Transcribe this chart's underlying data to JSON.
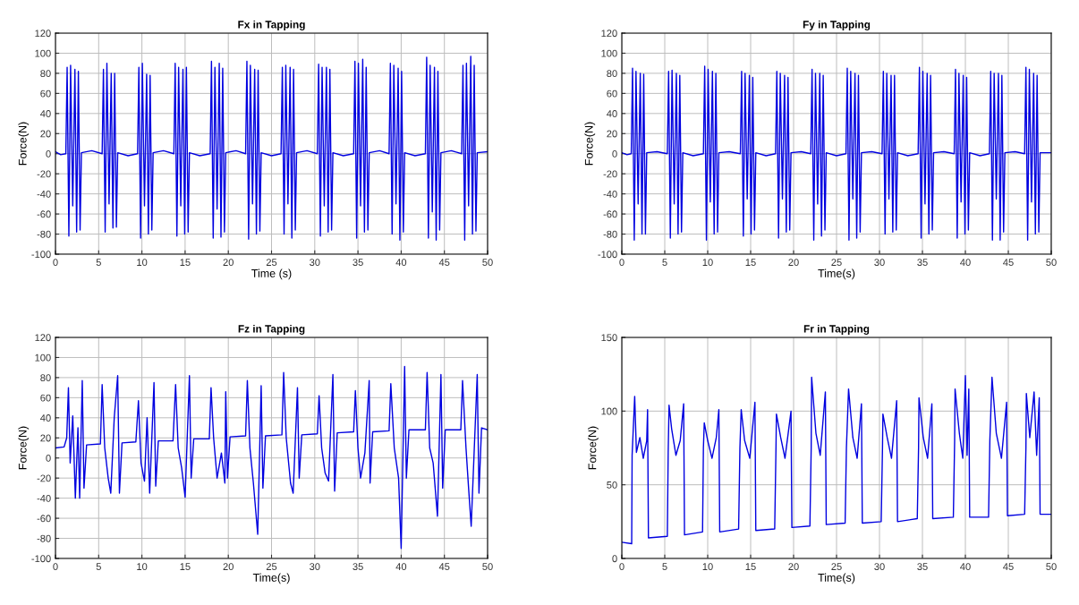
{
  "chart_data": [
    {
      "type": "line",
      "title": "Fx in Tapping",
      "xlabel": "Time (s)",
      "ylabel": "Force(N)",
      "xlim": [
        0,
        50
      ],
      "ylim": [
        -100,
        120
      ],
      "xticks": [
        0,
        5,
        10,
        15,
        20,
        25,
        30,
        35,
        40,
        45,
        50
      ],
      "yticks": [
        -100,
        -80,
        -60,
        -40,
        -20,
        0,
        20,
        40,
        60,
        80,
        100,
        120
      ],
      "grid": true,
      "series": [
        {
          "color": "#0000e0",
          "x": [
            0,
            0.6,
            1.2,
            1.35,
            1.55,
            1.75,
            2.0,
            2.25,
            2.45,
            2.65,
            2.85,
            3.0,
            4.2,
            5.4,
            5.55,
            5.75,
            5.95,
            6.2,
            6.45,
            6.65,
            6.85,
            7.05,
            7.2,
            8.4,
            9.5,
            9.65,
            9.85,
            10.05,
            10.3,
            10.55,
            10.75,
            10.95,
            11.15,
            11.3,
            12.5,
            13.7,
            13.85,
            14.05,
            14.25,
            14.5,
            14.75,
            14.95,
            15.15,
            15.35,
            15.5,
            16.7,
            17.9,
            18.05,
            18.25,
            18.45,
            18.7,
            18.95,
            19.15,
            19.35,
            19.55,
            19.7,
            20.9,
            22.0,
            22.15,
            22.35,
            22.55,
            22.8,
            23.05,
            23.25,
            23.45,
            23.65,
            23.8,
            25.0,
            26.1,
            26.25,
            26.45,
            26.65,
            26.9,
            27.15,
            27.35,
            27.55,
            27.75,
            27.9,
            29.1,
            30.3,
            30.45,
            30.65,
            30.85,
            31.1,
            31.35,
            31.55,
            31.75,
            31.95,
            32.1,
            33.3,
            34.5,
            34.65,
            34.85,
            35.05,
            35.3,
            35.55,
            35.75,
            35.95,
            36.15,
            36.3,
            37.5,
            38.6,
            38.75,
            38.95,
            39.15,
            39.4,
            39.65,
            39.85,
            40.05,
            40.25,
            40.4,
            41.6,
            42.8,
            42.95,
            43.15,
            43.35,
            43.6,
            43.85,
            44.05,
            44.25,
            44.45,
            44.6,
            45.8,
            47.0,
            47.15,
            47.35,
            47.55,
            47.8,
            48.05,
            48.25,
            48.45,
            48.65,
            48.8,
            50.0
          ],
          "values": [
            2,
            -1,
            0,
            86,
            -82,
            88,
            -52,
            84,
            -78,
            82,
            -76,
            1,
            3,
            0,
            84,
            -78,
            90,
            -50,
            80,
            -74,
            80,
            -73,
            1,
            -2,
            0,
            86,
            -84,
            90,
            -52,
            79,
            -80,
            78,
            -76,
            1,
            3,
            0,
            90,
            -82,
            86,
            -52,
            84,
            -80,
            86,
            -78,
            1,
            -2,
            0,
            92,
            -84,
            86,
            -55,
            90,
            -83,
            85,
            -78,
            1,
            3,
            0,
            92,
            -85,
            88,
            -50,
            84,
            -80,
            83,
            -77,
            1,
            -2,
            0,
            86,
            -80,
            88,
            -50,
            86,
            -84,
            84,
            -76,
            1,
            3,
            0,
            89,
            -82,
            86,
            -52,
            86,
            -78,
            84,
            -76,
            1,
            -2,
            0,
            92,
            -84,
            90,
            -52,
            94,
            -78,
            86,
            -76,
            1,
            3,
            0,
            90,
            -80,
            88,
            -50,
            85,
            -86,
            82,
            -78,
            1,
            -2,
            0,
            96,
            -84,
            88,
            -58,
            86,
            -86,
            82,
            -76,
            1,
            3,
            0,
            88,
            -86,
            90,
            -52,
            97,
            -80,
            88,
            -77,
            1,
            2
          ]
        }
      ]
    },
    {
      "type": "line",
      "title": "Fy in Tapping",
      "xlabel": "Time(s)",
      "ylabel": "Force(N)",
      "xlim": [
        0,
        50
      ],
      "ylim": [
        -100,
        120
      ],
      "xticks": [
        0,
        5,
        10,
        15,
        20,
        25,
        30,
        35,
        40,
        45,
        50
      ],
      "yticks": [
        -100,
        -80,
        -60,
        -40,
        -20,
        0,
        20,
        40,
        60,
        80,
        100,
        120
      ],
      "grid": true,
      "series": [
        {
          "color": "#0000e0",
          "x": [
            0,
            0.6,
            1.1,
            1.25,
            1.45,
            1.65,
            1.9,
            2.15,
            2.35,
            2.55,
            2.75,
            2.9,
            4.1,
            5.3,
            5.45,
            5.65,
            5.85,
            6.1,
            6.35,
            6.55,
            6.75,
            6.95,
            7.1,
            8.3,
            9.5,
            9.65,
            9.85,
            10.05,
            10.3,
            10.55,
            10.75,
            10.95,
            11.15,
            11.3,
            12.5,
            13.8,
            13.95,
            14.15,
            14.35,
            14.6,
            14.85,
            15.05,
            15.25,
            15.45,
            15.6,
            16.8,
            17.9,
            18.05,
            18.25,
            18.45,
            18.7,
            18.95,
            19.15,
            19.35,
            19.55,
            19.7,
            20.9,
            22.0,
            22.15,
            22.35,
            22.55,
            22.8,
            23.05,
            23.25,
            23.45,
            23.65,
            23.8,
            25.0,
            26.1,
            26.25,
            26.45,
            26.65,
            26.9,
            27.15,
            27.35,
            27.55,
            27.75,
            27.9,
            29.1,
            30.3,
            30.45,
            30.65,
            30.85,
            31.1,
            31.35,
            31.55,
            31.75,
            31.95,
            32.1,
            33.3,
            34.5,
            34.65,
            34.85,
            35.05,
            35.3,
            35.55,
            35.75,
            35.95,
            36.15,
            36.3,
            37.5,
            38.7,
            38.85,
            39.05,
            39.25,
            39.5,
            39.75,
            39.95,
            40.15,
            40.35,
            40.5,
            41.7,
            42.8,
            42.95,
            43.15,
            43.35,
            43.6,
            43.85,
            44.05,
            44.25,
            44.45,
            44.6,
            45.8,
            46.9,
            47.05,
            47.25,
            47.45,
            47.7,
            47.95,
            48.15,
            48.35,
            48.55,
            48.7,
            50.0
          ],
          "values": [
            1,
            -1,
            0,
            85,
            -86,
            82,
            -50,
            80,
            -80,
            79,
            -80,
            1,
            2,
            0,
            82,
            -84,
            83,
            -50,
            80,
            -80,
            78,
            -78,
            1,
            -2,
            0,
            87,
            -86,
            84,
            -48,
            82,
            -80,
            80,
            -78,
            1,
            2,
            0,
            82,
            -82,
            80,
            -45,
            78,
            -80,
            76,
            -76,
            1,
            -2,
            0,
            82,
            -84,
            80,
            -45,
            78,
            -78,
            76,
            -76,
            1,
            2,
            0,
            84,
            -86,
            80,
            -50,
            80,
            -82,
            78,
            -76,
            1,
            -2,
            0,
            85,
            -86,
            82,
            -45,
            80,
            -84,
            78,
            -78,
            1,
            2,
            0,
            82,
            -80,
            80,
            -45,
            78,
            -78,
            78,
            -76,
            1,
            -2,
            0,
            86,
            -84,
            82,
            -50,
            80,
            -80,
            78,
            -76,
            1,
            2,
            0,
            84,
            -84,
            80,
            -48,
            78,
            -80,
            76,
            -76,
            1,
            -2,
            0,
            82,
            -86,
            80,
            -45,
            80,
            -86,
            78,
            -78,
            1,
            2,
            0,
            86,
            -86,
            84,
            -48,
            80,
            -80,
            78,
            -78,
            1,
            1
          ]
        }
      ]
    },
    {
      "type": "line",
      "title": "Fz in Tapping",
      "xlabel": "Time(s)",
      "ylabel": "Force(N)",
      "xlim": [
        0,
        50
      ],
      "ylim": [
        -100,
        120
      ],
      "xticks": [
        0,
        5,
        10,
        15,
        20,
        25,
        30,
        35,
        40,
        45,
        50
      ],
      "yticks": [
        -100,
        -80,
        -60,
        -40,
        -20,
        0,
        20,
        40,
        60,
        80,
        100,
        120
      ],
      "grid": true,
      "series": [
        {
          "color": "#0000e0",
          "x": [
            0,
            1.0,
            1.3,
            1.5,
            1.7,
            2.0,
            2.3,
            2.6,
            2.8,
            3.1,
            3.3,
            3.6,
            5.2,
            5.4,
            5.7,
            6.1,
            6.4,
            6.8,
            7.2,
            7.4,
            7.7,
            9.3,
            9.6,
            9.9,
            10.3,
            10.6,
            10.9,
            11.4,
            11.6,
            11.9,
            13.6,
            13.9,
            14.2,
            14.6,
            15.0,
            15.5,
            15.7,
            16.0,
            17.8,
            18.0,
            18.3,
            18.7,
            19.2,
            19.6,
            19.7,
            19.9,
            20.2,
            22.0,
            22.2,
            22.5,
            22.9,
            23.4,
            23.8,
            24.0,
            24.3,
            26.2,
            26.4,
            26.7,
            27.2,
            27.5,
            28.0,
            28.2,
            28.5,
            30.3,
            30.5,
            30.8,
            31.2,
            31.6,
            32.1,
            32.3,
            32.6,
            34.5,
            34.7,
            35.0,
            35.3,
            35.8,
            36.3,
            36.4,
            36.7,
            38.6,
            38.8,
            39.2,
            39.7,
            40.0,
            40.4,
            40.6,
            40.9,
            42.8,
            43.0,
            43.3,
            43.7,
            44.2,
            44.6,
            44.8,
            45.1,
            46.9,
            47.1,
            47.5,
            47.8,
            48.1,
            48.8,
            49.0,
            49.3,
            50.0
          ],
          "values": [
            10,
            11,
            20,
            70,
            -5,
            42,
            -40,
            30,
            -40,
            77,
            -30,
            13,
            14,
            73,
            10,
            -20,
            -35,
            40,
            82,
            -35,
            15,
            16,
            57,
            -5,
            -23,
            40,
            -35,
            75,
            -28,
            17,
            17,
            73,
            10,
            -10,
            -39,
            82,
            -20,
            19,
            19,
            70,
            20,
            -20,
            5,
            -25,
            66,
            -20,
            21,
            22,
            77,
            10,
            -25,
            -76,
            72,
            -30,
            22,
            23,
            85,
            20,
            -25,
            -35,
            70,
            -20,
            23,
            24,
            62,
            10,
            -15,
            -23,
            83,
            -33,
            25,
            26,
            67,
            10,
            -20,
            5,
            77,
            -25,
            26,
            27,
            74,
            10,
            -20,
            -90,
            91,
            -20,
            28,
            28,
            85,
            10,
            -5,
            -58,
            83,
            -30,
            28,
            28,
            77,
            10,
            -30,
            -68,
            83,
            -35,
            30,
            28
          ]
        }
      ]
    },
    {
      "type": "line",
      "title": "Fr in Tapping",
      "xlabel": "Time(s)",
      "ylabel": "Force(N)",
      "xlim": [
        0,
        50
      ],
      "ylim": [
        0,
        150
      ],
      "xticks": [
        0,
        5,
        10,
        15,
        20,
        25,
        30,
        35,
        40,
        45,
        50
      ],
      "yticks": [
        0,
        50,
        100,
        150
      ],
      "grid": true,
      "series": [
        {
          "color": "#0000e0",
          "x": [
            0,
            1.15,
            1.2,
            1.5,
            1.7,
            2.1,
            2.5,
            2.9,
            3.0,
            3.1,
            5.3,
            5.4,
            5.5,
            5.8,
            6.3,
            6.8,
            7.2,
            7.3,
            9.4,
            9.5,
            9.6,
            10.0,
            10.5,
            11.0,
            11.3,
            11.4,
            13.6,
            13.75,
            13.9,
            14.3,
            14.9,
            15.5,
            15.6,
            17.8,
            17.95,
            18.0,
            18.5,
            19.0,
            19.7,
            19.8,
            21.9,
            22.05,
            22.1,
            22.6,
            23.1,
            23.7,
            23.8,
            26.0,
            26.15,
            26.4,
            26.9,
            27.4,
            27.9,
            28.0,
            30.2,
            30.35,
            30.4,
            30.9,
            31.4,
            32.0,
            32.1,
            34.4,
            34.55,
            34.6,
            35.1,
            35.6,
            36.1,
            36.2,
            38.6,
            38.75,
            38.8,
            39.3,
            39.7,
            40.0,
            40.2,
            40.4,
            40.5,
            42.7,
            42.85,
            43.1,
            43.6,
            44.2,
            44.8,
            44.9,
            46.9,
            47.05,
            47.1,
            47.5,
            48.0,
            48.3,
            48.6,
            48.7,
            50.0
          ],
          "values": [
            11,
            10,
            70,
            110,
            72,
            82,
            68,
            80,
            101,
            14,
            15,
            72,
            104,
            88,
            70,
            80,
            105,
            16,
            18,
            75,
            92,
            80,
            68,
            82,
            101,
            18,
            20,
            75,
            101,
            80,
            68,
            106,
            19,
            20,
            75,
            98,
            82,
            68,
            100,
            21,
            22,
            75,
            123,
            85,
            70,
            113,
            23,
            24,
            75,
            115,
            82,
            68,
            105,
            24,
            25,
            75,
            98,
            82,
            68,
            107,
            25,
            27,
            75,
            109,
            82,
            68,
            105,
            27,
            28,
            80,
            115,
            85,
            68,
            124,
            70,
            115,
            28,
            28,
            80,
            123,
            85,
            68,
            106,
            29,
            30,
            75,
            112,
            82,
            113,
            70,
            109,
            30,
            30
          ]
        }
      ]
    }
  ]
}
